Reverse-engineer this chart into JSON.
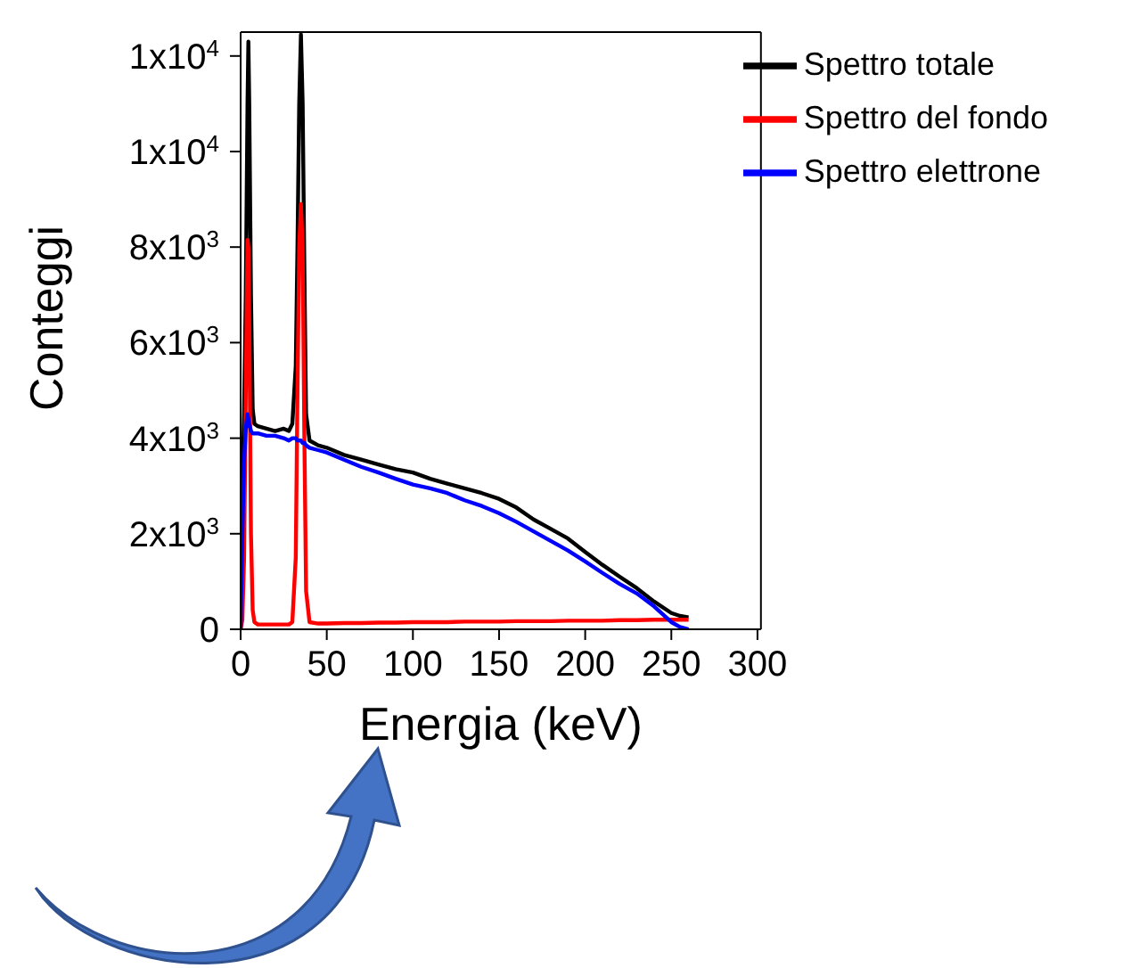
{
  "chart_data": {
    "type": "line",
    "xlabel": "Energia (keV)",
    "ylabel": "Conteggi",
    "x": [
      0,
      1,
      2,
      3,
      4,
      4.5,
      5,
      6,
      7,
      8,
      10,
      15,
      20,
      25,
      28,
      30,
      32,
      33,
      34,
      35,
      36,
      37,
      38,
      40,
      45,
      50,
      60,
      70,
      80,
      90,
      100,
      110,
      120,
      130,
      140,
      150,
      160,
      170,
      180,
      190,
      200,
      210,
      220,
      230,
      240,
      250,
      255,
      260
    ],
    "series": [
      {
        "name": "Spettro totale",
        "color": "#000000",
        "values": [
          1500,
          3000,
          4500,
          7000,
          11000,
          12300,
          11000,
          7000,
          4600,
          4300,
          4250,
          4200,
          4150,
          4200,
          4150,
          4300,
          5500,
          8000,
          11000,
          12450,
          11000,
          7500,
          4500,
          3950,
          3850,
          3800,
          3650,
          3550,
          3450,
          3350,
          3280,
          3150,
          3050,
          2950,
          2850,
          2730,
          2550,
          2300,
          2100,
          1900,
          1620,
          1350,
          1100,
          860,
          580,
          340,
          280,
          250
        ]
      },
      {
        "name": "Spettro del fondo",
        "color": "#ff0000",
        "values": [
          0,
          200,
          1500,
          5000,
          8150,
          8000,
          6500,
          2000,
          400,
          150,
          100,
          100,
          100,
          100,
          100,
          150,
          1500,
          5000,
          8000,
          8900,
          8000,
          4000,
          800,
          150,
          120,
          120,
          130,
          130,
          140,
          140,
          150,
          150,
          150,
          160,
          160,
          160,
          170,
          170,
          170,
          180,
          180,
          180,
          190,
          190,
          200,
          200,
          200,
          200
        ]
      },
      {
        "name": "Spettro elettrone",
        "color": "#0000ff",
        "values": [
          0,
          2000,
          3500,
          4200,
          4500,
          4400,
          4300,
          4150,
          4100,
          4100,
          4100,
          4050,
          4050,
          4000,
          3950,
          4000,
          4000,
          3950,
          3950,
          3950,
          3900,
          3900,
          3850,
          3800,
          3750,
          3700,
          3550,
          3400,
          3280,
          3150,
          3030,
          2950,
          2850,
          2700,
          2580,
          2430,
          2250,
          2050,
          1850,
          1650,
          1420,
          1180,
          950,
          750,
          480,
          150,
          50,
          0
        ]
      }
    ],
    "xlim": [
      0,
      302
    ],
    "xticks": [
      0,
      50,
      100,
      150,
      200,
      250,
      300
    ],
    "ylim": [
      0,
      12500
    ],
    "yticks": [
      0,
      {
        "value": 2000,
        "label": "2x10$^{3}$"
      },
      {
        "value": 4000,
        "label": "4x10$^{3}$"
      },
      {
        "value": 6000,
        "label": "6x10$^{3}$"
      },
      {
        "value": 8000,
        "label": "8x10$^{3}$"
      },
      {
        "value": 10000,
        "label": "1x10$^{4}$"
      },
      {
        "value": 12000,
        "label": "1x10$^{4}$"
      }
    ],
    "legend": "top right",
    "marker": "none",
    "line_style": "solid"
  }
}
